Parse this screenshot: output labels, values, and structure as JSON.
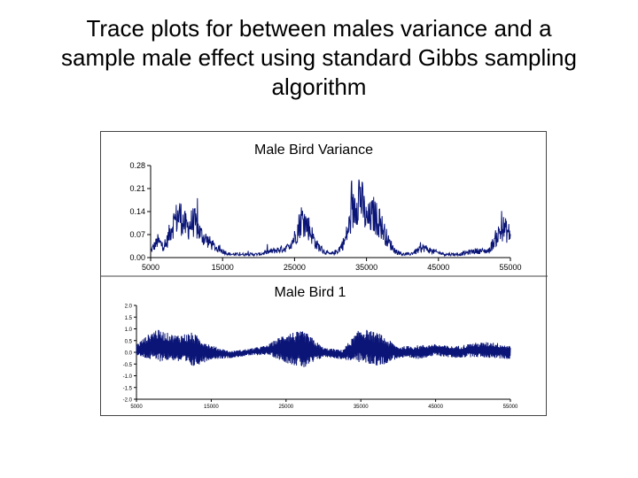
{
  "slide": {
    "title_lines": [
      "Trace plots for between males variance and a",
      "sample male effect using standard Gibbs sampling",
      "algorithm"
    ]
  },
  "chart_data": [
    {
      "type": "line",
      "title": "Male Bird Variance",
      "xlabel": "",
      "ylabel": "",
      "xlim": [
        5000,
        55000
      ],
      "ylim": [
        0.0,
        0.28
      ],
      "x_tick_labels": [
        "5000",
        "15000",
        "25000",
        "35000",
        "45000",
        "55000"
      ],
      "y_tick_labels": [
        "0.00",
        "0.07",
        "0.14",
        "0.21",
        "0.28"
      ],
      "series": [
        {
          "name": "variance trace",
          "color": "#0a1577",
          "x": [
            5000,
            6000,
            7000,
            8000,
            9000,
            10000,
            11000,
            12000,
            13000,
            14000,
            15000,
            16000,
            18000,
            20000,
            22000,
            24000,
            25000,
            26000,
            27000,
            28000,
            29000,
            30000,
            31000,
            32000,
            33000,
            34000,
            35000,
            36000,
            37000,
            38000,
            39000,
            40000,
            41000,
            42000,
            43000,
            44000,
            46000,
            48000,
            50000,
            52000,
            53000,
            54000,
            55000
          ],
          "y": [
            0.02,
            0.05,
            0.03,
            0.1,
            0.13,
            0.09,
            0.11,
            0.07,
            0.05,
            0.03,
            0.02,
            0.01,
            0.01,
            0.01,
            0.02,
            0.03,
            0.06,
            0.12,
            0.09,
            0.04,
            0.02,
            0.01,
            0.02,
            0.05,
            0.13,
            0.2,
            0.11,
            0.13,
            0.1,
            0.05,
            0.02,
            0.01,
            0.01,
            0.02,
            0.03,
            0.02,
            0.01,
            0.01,
            0.02,
            0.02,
            0.06,
            0.09,
            0.07
          ]
        }
      ]
    },
    {
      "type": "line",
      "title": "Male Bird 1",
      "xlabel": "",
      "ylabel": "",
      "xlim": [
        5000,
        55000
      ],
      "ylim": [
        -2.0,
        2.0
      ],
      "x_tick_labels": [
        "5000",
        "15000",
        "25000",
        "35000",
        "45000",
        "55000"
      ],
      "y_tick_labels": [
        "-2.0",
        "-1.5",
        "-1.0",
        "-0.5",
        "0.0",
        "0.5",
        "1.0",
        "1.5",
        "2.0"
      ],
      "series": [
        {
          "name": "male bird 1 trace",
          "color": "#0a1577",
          "x": [
            5000,
            7500,
            10000,
            12500,
            15000,
            17500,
            20000,
            22500,
            25000,
            27500,
            30000,
            32500,
            35000,
            37500,
            40000,
            42500,
            45000,
            47500,
            50000,
            52500,
            55000
          ],
          "y": [
            0.1,
            0.3,
            0.2,
            0.1,
            0.0,
            -0.1,
            0.0,
            0.1,
            0.2,
            0.1,
            0.0,
            -0.1,
            0.3,
            0.1,
            0.0,
            0.0,
            0.1,
            0.0,
            0.1,
            0.1,
            0.0
          ],
          "envelope": [
            0.25,
            0.7,
            0.55,
            0.75,
            0.3,
            0.15,
            0.15,
            0.2,
            0.65,
            0.8,
            0.2,
            0.2,
            0.75,
            0.7,
            0.25,
            0.3,
            0.25,
            0.25,
            0.3,
            0.35,
            0.3
          ]
        }
      ]
    }
  ]
}
